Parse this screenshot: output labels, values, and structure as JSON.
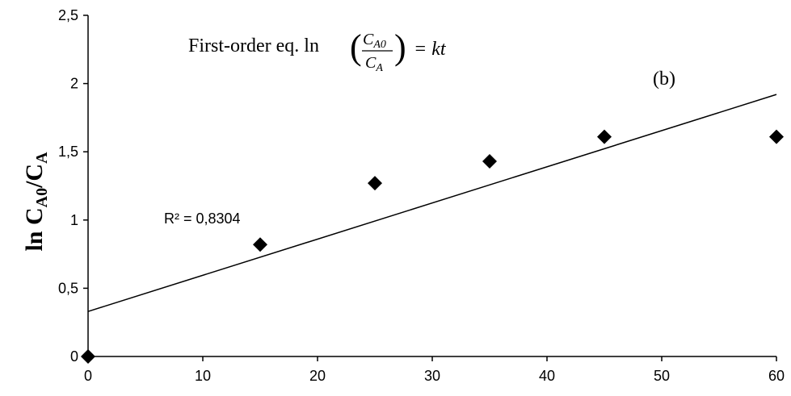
{
  "chart_data": {
    "type": "scatter",
    "title": "",
    "xlabel": "",
    "ylabel": "ln C_A0/C_A",
    "ylabel_parts": {
      "main": "ln C",
      "sub1": "A0",
      "mid": "/C",
      "sub2": "A"
    },
    "xlim": [
      0,
      60
    ],
    "ylim": [
      0,
      2.5
    ],
    "x_ticks": [
      "0",
      "10",
      "20",
      "30",
      "40",
      "50",
      "60"
    ],
    "y_ticks": [
      "0",
      "0,5",
      "1",
      "1,5",
      "2",
      "2,5"
    ],
    "grid": false,
    "marker": "diamond",
    "marker_color": "#000000",
    "series": [
      {
        "x": [
          0,
          15,
          25,
          35,
          45,
          60
        ],
        "y": [
          0,
          0.82,
          1.27,
          1.43,
          1.61,
          1.61
        ]
      }
    ],
    "trendline": {
      "intercept": 0.33,
      "slope": 0.0265,
      "r_squared_label": "R² = 0,8304"
    },
    "annotations": {
      "equation_prefix": "First-order eq. ln",
      "equation_numerator": "C",
      "equation_numerator_sub": "A0",
      "equation_denominator": "C",
      "equation_denominator_sub": "A",
      "equation_rhs": "= kt",
      "panel_label": "(b)"
    }
  }
}
